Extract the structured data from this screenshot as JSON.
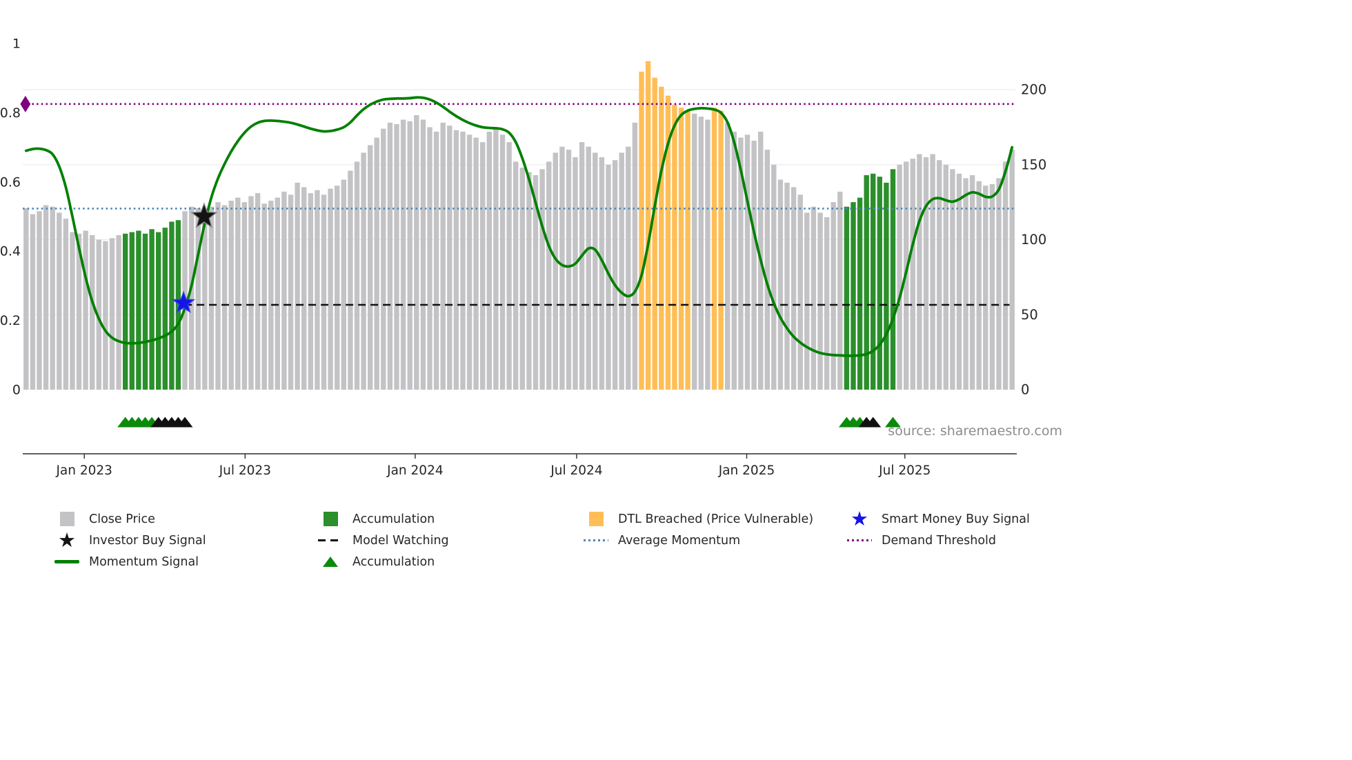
{
  "source": "source: sharemaestro.com",
  "colors": {
    "close_price": "#c3c3c6",
    "accumulation": "#2b8f2b",
    "dtl_breached": "#ffbe55",
    "momentum": "#008000",
    "average_momentum": "#4a86b8",
    "demand_threshold": "#800080",
    "model_watching": "#111111",
    "smart_money_star": "#1414e6",
    "investor_star": "#141414",
    "accumulation_triangle": "#0b8a0b",
    "triangle_black": "#111111"
  },
  "legend": {
    "close_price": "Close Price",
    "investor_buy_signal": "Investor Buy Signal",
    "momentum_signal": "Momentum Signal",
    "accumulation_bar": "Accumulation",
    "model_watching": "Model Watching",
    "accumulation_marker": "Accumulation",
    "dtl_breached": "DTL Breached (Price Vulnerable)",
    "average_momentum": "Average Momentum",
    "smart_money_buy_signal": "Smart Money Buy Signal",
    "demand_threshold": "Demand Threshold"
  },
  "chart_data": {
    "type": "bar+line",
    "title": "",
    "x": {
      "tick_labels": [
        "Jan 2023",
        "Jul 2023",
        "Jan 2024",
        "Jul 2024",
        "Jan 2025",
        "Jul 2025"
      ],
      "tick_indices": [
        8.8,
        33.1,
        58.8,
        83.2,
        108.9,
        132.8
      ],
      "n_points": 150
    },
    "left_axis": {
      "ticks": [
        0,
        0.2,
        0.4,
        0.6,
        0.8,
        1
      ],
      "tick_labels": [
        "0",
        "0.2",
        "0.4",
        "0.6",
        "0.8",
        "1"
      ],
      "range": [
        0,
        1.06
      ]
    },
    "right_axis": {
      "ticks": [
        0,
        50,
        100,
        150,
        200
      ],
      "tick_labels": [
        "0",
        "50",
        "100",
        "150",
        "200"
      ],
      "range": [
        0,
        246
      ]
    },
    "close_price_bars": {
      "name": "Close Price",
      "axis": "right",
      "values": [
        121,
        117,
        119,
        123,
        122,
        118,
        114,
        105,
        104,
        106,
        103,
        100,
        99,
        101,
        103,
        104,
        105,
        106,
        104,
        107,
        105,
        108,
        112,
        113,
        119,
        122,
        121,
        118,
        122,
        125,
        123,
        126,
        128,
        125,
        129,
        131,
        124,
        126,
        128,
        132,
        130,
        138,
        135,
        131,
        133,
        130,
        134,
        136,
        140,
        146,
        152,
        158,
        163,
        168,
        174,
        178,
        177,
        180,
        179,
        183,
        180,
        175,
        172,
        178,
        176,
        173,
        172,
        170,
        168,
        165,
        172,
        175,
        170,
        165,
        152,
        148,
        145,
        143,
        147,
        152,
        158,
        162,
        160,
        155,
        165,
        162,
        158,
        155,
        150,
        153,
        158,
        162,
        178,
        212,
        219,
        208,
        202,
        196,
        190,
        188,
        186,
        184,
        182,
        180,
        188,
        186,
        178,
        172,
        168,
        170,
        166,
        172,
        160,
        150,
        140,
        138,
        135,
        130,
        118,
        122,
        118,
        115,
        125,
        132,
        122,
        125,
        128,
        143,
        144,
        142,
        138,
        147,
        150,
        152,
        154,
        157,
        155,
        157,
        153,
        150,
        147,
        144,
        141,
        143,
        139,
        136,
        137,
        141,
        152,
        160
      ]
    },
    "accumulation_ranges": [
      [
        15,
        23
      ],
      [
        124,
        131
      ]
    ],
    "dtl_breached_ranges": [
      [
        93,
        100
      ],
      [
        104,
        105
      ]
    ],
    "momentum_line": {
      "name": "Momentum Signal",
      "axis": "left",
      "values": [
        0.69,
        0.695,
        0.696,
        0.692,
        0.68,
        0.645,
        0.585,
        0.5,
        0.41,
        0.325,
        0.255,
        0.205,
        0.17,
        0.15,
        0.14,
        0.135,
        0.134,
        0.135,
        0.138,
        0.142,
        0.148,
        0.156,
        0.168,
        0.19,
        0.235,
        0.3,
        0.39,
        0.48,
        0.555,
        0.61,
        0.652,
        0.688,
        0.718,
        0.742,
        0.76,
        0.771,
        0.776,
        0.777,
        0.776,
        0.774,
        0.771,
        0.766,
        0.76,
        0.754,
        0.749,
        0.746,
        0.747,
        0.751,
        0.758,
        0.772,
        0.792,
        0.81,
        0.823,
        0.832,
        0.838,
        0.84,
        0.841,
        0.841,
        0.842,
        0.844,
        0.843,
        0.838,
        0.829,
        0.817,
        0.803,
        0.79,
        0.779,
        0.77,
        0.763,
        0.758,
        0.756,
        0.755,
        0.752,
        0.742,
        0.715,
        0.668,
        0.608,
        0.54,
        0.472,
        0.415,
        0.378,
        0.36,
        0.356,
        0.364,
        0.387,
        0.408,
        0.404,
        0.374,
        0.335,
        0.302,
        0.28,
        0.27,
        0.283,
        0.33,
        0.42,
        0.53,
        0.632,
        0.71,
        0.763,
        0.793,
        0.806,
        0.811,
        0.813,
        0.812,
        0.809,
        0.8,
        0.772,
        0.715,
        0.635,
        0.545,
        0.455,
        0.375,
        0.305,
        0.25,
        0.208,
        0.177,
        0.153,
        0.136,
        0.123,
        0.113,
        0.106,
        0.102,
        0.1,
        0.099,
        0.098,
        0.098,
        0.099,
        0.103,
        0.112,
        0.13,
        0.16,
        0.205,
        0.265,
        0.34,
        0.42,
        0.487,
        0.53,
        0.55,
        0.553,
        0.547,
        0.543,
        0.55,
        0.562,
        0.57,
        0.566,
        0.557,
        0.558,
        0.578,
        0.63,
        0.7
      ]
    },
    "reference_lines": [
      {
        "name": "Demand Threshold",
        "value": 0.825,
        "style": "dotted",
        "color": "demand_threshold",
        "from": -0.5,
        "to": 149.5
      },
      {
        "name": "Average Momentum",
        "value": 0.523,
        "style": "dotted",
        "color": "average_momentum",
        "from": -0.5,
        "to": 149.5
      },
      {
        "name": "Model Watching",
        "value": 0.245,
        "style": "dashed",
        "color": "model_watching",
        "from": 23.9,
        "to": 148.6
      }
    ],
    "markers": [
      {
        "name": "smart-money-buy-signal-marker",
        "shape": "star",
        "color": "smart_money_star",
        "stroke": "#3c3cf0",
        "index": 23.8,
        "value": 0.25,
        "size": 16
      },
      {
        "name": "investor-buy-signal-marker",
        "shape": "star",
        "color": "investor_star",
        "stroke": "#8f8f8f",
        "index": 26.9,
        "value": 0.5,
        "size": 19
      },
      {
        "name": "demand-threshold-marker",
        "shape": "diamond",
        "color": "demand_threshold",
        "stroke": "none",
        "index": -0.1,
        "value": 0.825,
        "size": 12
      }
    ],
    "accumulation_markers": [
      {
        "index": 15,
        "color": "green"
      },
      {
        "index": 16,
        "color": "green"
      },
      {
        "index": 17,
        "color": "green"
      },
      {
        "index": 18,
        "color": "green"
      },
      {
        "index": 19,
        "color": "green"
      },
      {
        "index": 20,
        "color": "black"
      },
      {
        "index": 21,
        "color": "black"
      },
      {
        "index": 22,
        "color": "black"
      },
      {
        "index": 23,
        "color": "black"
      },
      {
        "index": 24,
        "color": "black"
      },
      {
        "index": 124,
        "color": "green"
      },
      {
        "index": 125,
        "color": "green"
      },
      {
        "index": 126,
        "color": "green"
      },
      {
        "index": 127,
        "color": "black"
      },
      {
        "index": 128,
        "color": "black"
      },
      {
        "index": 131,
        "color": "green"
      }
    ]
  }
}
